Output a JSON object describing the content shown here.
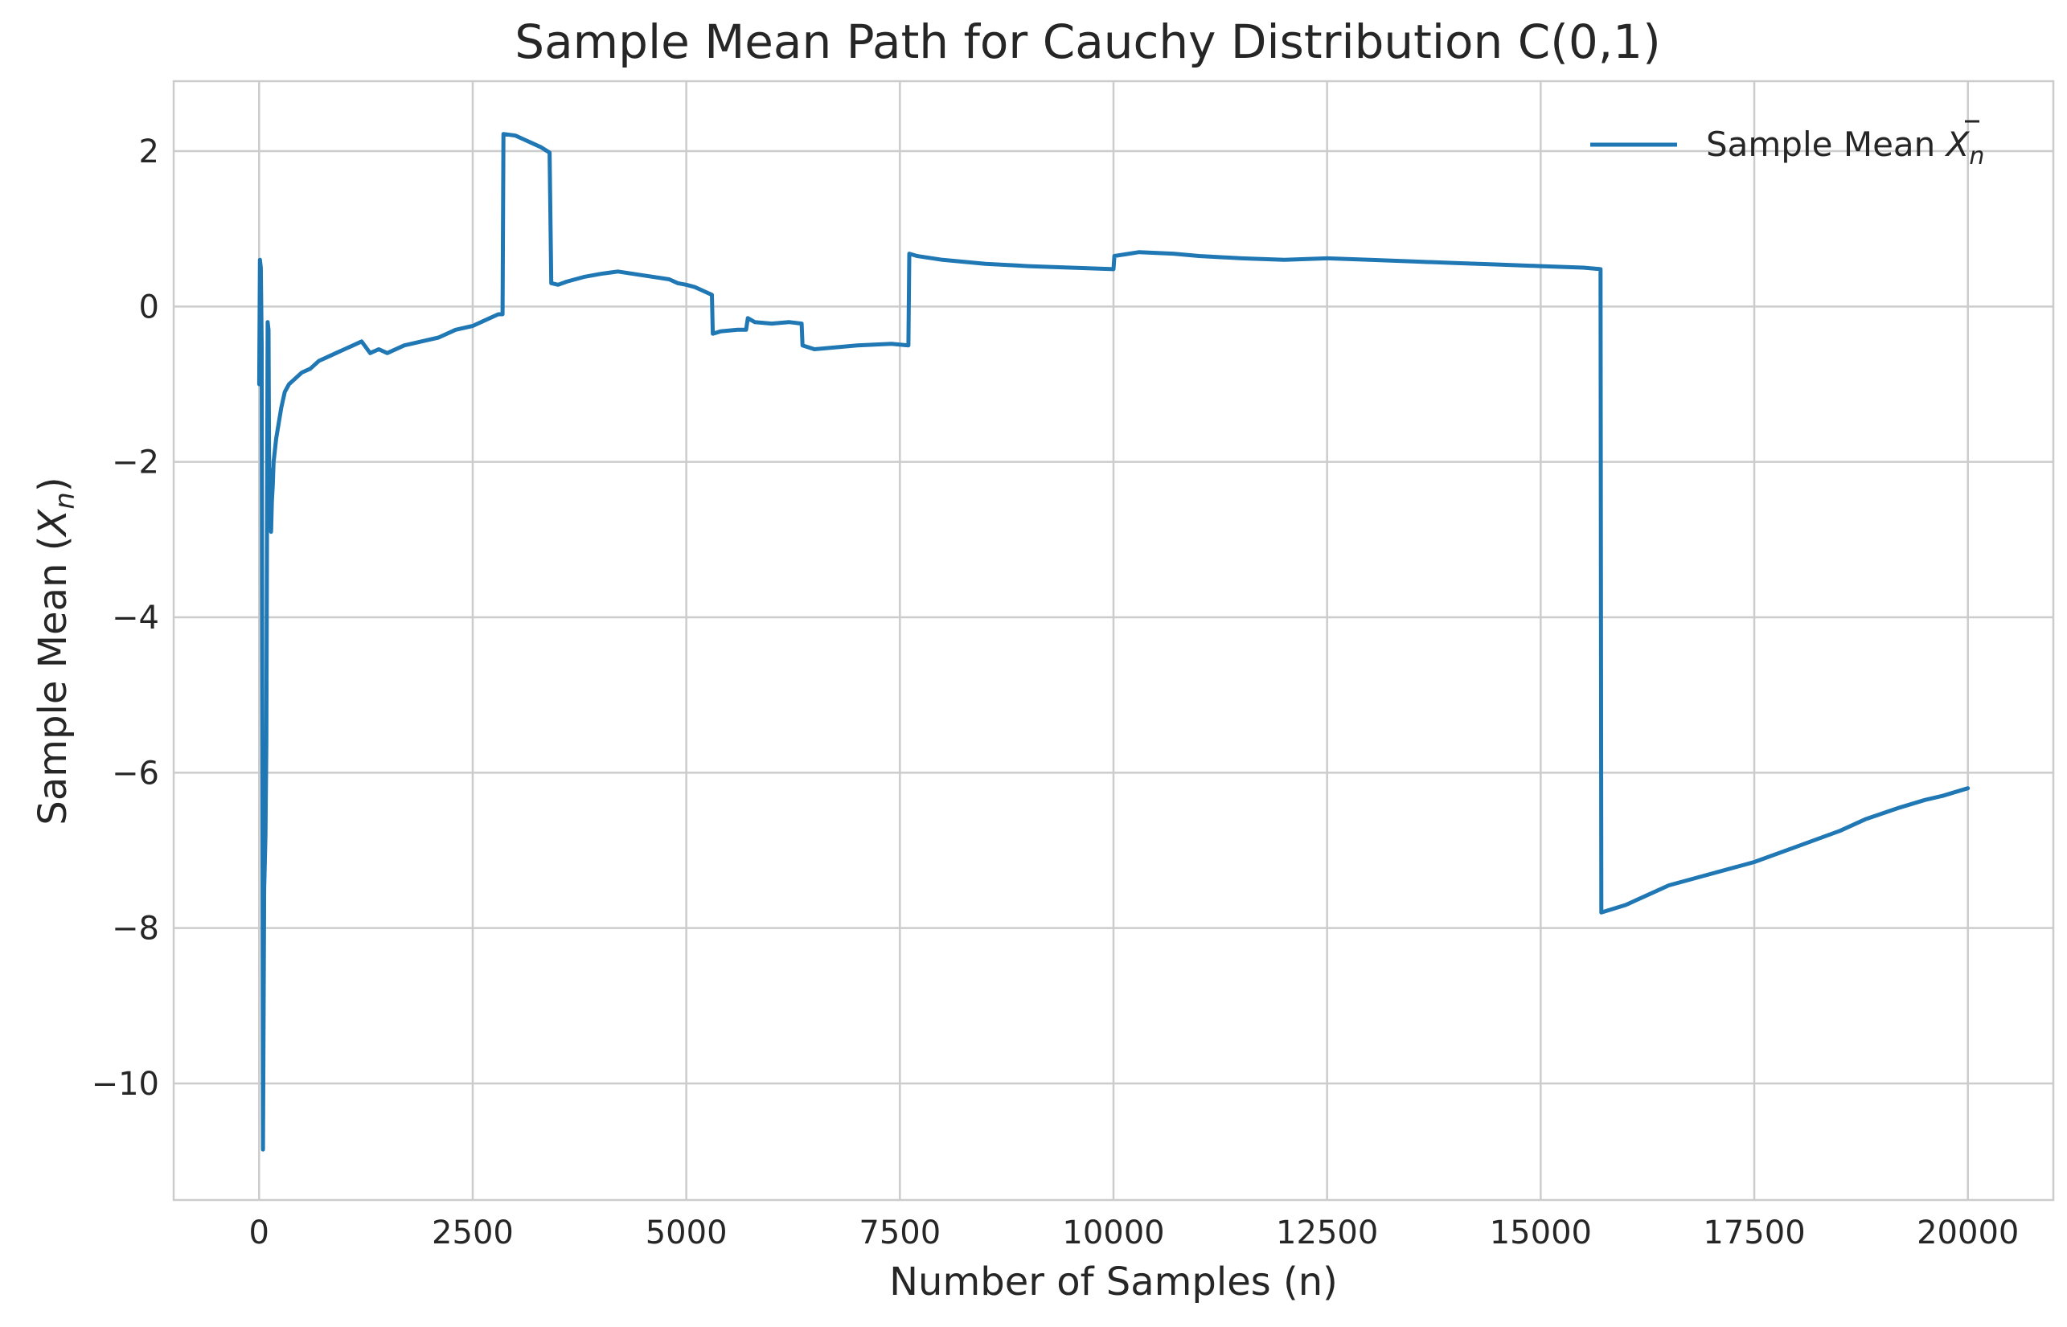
{
  "chart_data": {
    "type": "line",
    "title": "Sample Mean Path for Cauchy Distribution C(0,1)",
    "xlabel": "Number of Samples (n)",
    "ylabel_prefix": "Sample Mean (",
    "ylabel_symbol": "X",
    "ylabel_subscript": "n",
    "ylabel_suffix": ")",
    "xlim": [
      -1000,
      21000
    ],
    "ylim": [
      -11.5,
      2.9
    ],
    "xticks": [
      0,
      2500,
      5000,
      7500,
      10000,
      12500,
      15000,
      17500,
      20000
    ],
    "yticks": [
      -10,
      -8,
      -6,
      -4,
      -2,
      0,
      2
    ],
    "grid": true,
    "legend_position": "top-right",
    "colors": {
      "line": "#1f77b4",
      "grid": "#cccccc",
      "axis": "#cccccc",
      "text": "#262626"
    },
    "series": [
      {
        "name_prefix": "Sample Mean ",
        "name_symbol": "X",
        "name_subscript": "n",
        "x": [
          1,
          10,
          20,
          30,
          45,
          60,
          75,
          85,
          100,
          110,
          120,
          130,
          140,
          150,
          160,
          170,
          180,
          200,
          230,
          260,
          300,
          350,
          400,
          450,
          500,
          600,
          650,
          700,
          800,
          900,
          1000,
          1100,
          1200,
          1300,
          1400,
          1500,
          1700,
          1900,
          2100,
          2300,
          2500,
          2700,
          2800,
          2850,
          2860,
          3000,
          3100,
          3200,
          3300,
          3400,
          3420,
          3500,
          3600,
          3800,
          4000,
          4200,
          4500,
          4800,
          4900,
          5000,
          5100,
          5200,
          5300,
          5310,
          5400,
          5600,
          5700,
          5720,
          5800,
          6000,
          6200,
          6350,
          6360,
          6500,
          7000,
          7400,
          7600,
          7610,
          7700,
          8000,
          8500,
          9000,
          9500,
          10000,
          10010,
          10300,
          10700,
          11000,
          11500,
          12000,
          12500,
          13000,
          13500,
          14000,
          14500,
          15000,
          15500,
          15700,
          15710,
          16000,
          16300,
          16500,
          17000,
          17500,
          18000,
          18500,
          18800,
          19200,
          19500,
          19700,
          20000
        ],
        "y": [
          -1.0,
          0.6,
          0.5,
          -0.5,
          -10.85,
          -7.5,
          -6.8,
          -5.6,
          -0.2,
          -0.3,
          -2.8,
          -2.1,
          -2.9,
          -2.5,
          -2.3,
          -2.0,
          -1.9,
          -1.7,
          -1.5,
          -1.3,
          -1.1,
          -1.0,
          -0.95,
          -0.9,
          -0.85,
          -0.8,
          -0.75,
          -0.7,
          -0.65,
          -0.6,
          -0.55,
          -0.5,
          -0.45,
          -0.6,
          -0.55,
          -0.6,
          -0.5,
          -0.45,
          -0.4,
          -0.3,
          -0.25,
          -0.15,
          -0.1,
          -0.1,
          2.22,
          2.2,
          2.15,
          2.1,
          2.05,
          1.98,
          0.3,
          0.28,
          0.32,
          0.38,
          0.42,
          0.45,
          0.4,
          0.35,
          0.3,
          0.28,
          0.25,
          0.2,
          0.15,
          -0.35,
          -0.32,
          -0.3,
          -0.3,
          -0.15,
          -0.2,
          -0.22,
          -0.2,
          -0.22,
          -0.5,
          -0.55,
          -0.5,
          -0.48,
          -0.5,
          0.68,
          0.65,
          0.6,
          0.55,
          0.52,
          0.5,
          0.48,
          0.65,
          0.7,
          0.68,
          0.65,
          0.62,
          0.6,
          0.62,
          0.6,
          0.58,
          0.56,
          0.54,
          0.52,
          0.5,
          0.48,
          -7.8,
          -7.7,
          -7.55,
          -7.45,
          -7.3,
          -7.15,
          -6.95,
          -6.75,
          -6.6,
          -6.45,
          -6.35,
          -6.3,
          -6.2
        ]
      }
    ]
  }
}
